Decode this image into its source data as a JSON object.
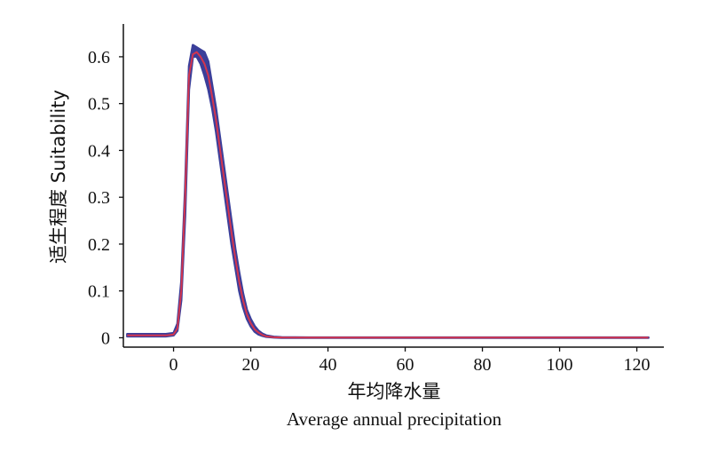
{
  "chart_data": {
    "type": "line",
    "title": "",
    "xlabel_cn": "年均降水量",
    "xlabel_en": "Average annual precipitation",
    "ylabel": "适生程度 Suitability",
    "xlim": [
      -13,
      127
    ],
    "ylim": [
      -0.02,
      0.67
    ],
    "xticks": [
      0,
      20,
      40,
      60,
      80,
      100,
      120
    ],
    "xtick_labels": [
      "0",
      "20",
      "40",
      "60",
      "80",
      "100",
      "120"
    ],
    "yticks": [
      0,
      0.1,
      0.2,
      0.3,
      0.4,
      0.5,
      0.6
    ],
    "ytick_labels": [
      "0",
      "0.1",
      "0.2",
      "0.3",
      "0.4",
      "0.5",
      "0.6"
    ],
    "grid": false,
    "series": [
      {
        "color": "#3b3f9a",
        "x": [
          -12,
          -2,
          0,
          1,
          2,
          3,
          4,
          5,
          6,
          7,
          8,
          9,
          10,
          11,
          12,
          13,
          14,
          15,
          16,
          17,
          18,
          19,
          20,
          21,
          22,
          23,
          24,
          26,
          28,
          35,
          60,
          90,
          123
        ],
        "upper": [
          0.008,
          0.008,
          0.01,
          0.03,
          0.12,
          0.32,
          0.58,
          0.625,
          0.62,
          0.615,
          0.61,
          0.59,
          0.54,
          0.49,
          0.43,
          0.37,
          0.31,
          0.25,
          0.19,
          0.14,
          0.095,
          0.06,
          0.04,
          0.025,
          0.015,
          0.009,
          0.005,
          0.002,
          0.001,
          0.0005,
          0.0005,
          0.0005,
          0.0005
        ],
        "lower": [
          0.003,
          0.003,
          0.005,
          0.015,
          0.08,
          0.26,
          0.53,
          0.6,
          0.6,
          0.585,
          0.56,
          0.53,
          0.49,
          0.44,
          0.38,
          0.32,
          0.26,
          0.2,
          0.15,
          0.1,
          0.065,
          0.04,
          0.024,
          0.013,
          0.007,
          0.004,
          0.002,
          0.0005,
          0,
          0,
          0,
          0,
          0
        ]
      },
      {
        "color": "#d3354f",
        "x": [
          -12,
          -2,
          0,
          1,
          2,
          3,
          4,
          5,
          6,
          7,
          8,
          9,
          10,
          11,
          12,
          13,
          14,
          15,
          16,
          17,
          18,
          19,
          20,
          21,
          22,
          23,
          24,
          26,
          28,
          35,
          60,
          90,
          123
        ],
        "y": [
          0.005,
          0.005,
          0.007,
          0.02,
          0.1,
          0.3,
          0.56,
          0.605,
          0.61,
          0.6,
          0.585,
          0.56,
          0.515,
          0.465,
          0.405,
          0.345,
          0.285,
          0.225,
          0.17,
          0.12,
          0.08,
          0.05,
          0.031,
          0.018,
          0.011,
          0.006,
          0.003,
          0.001,
          0.0005,
          0.0003,
          0.0003,
          0.0003,
          0.0003
        ]
      }
    ]
  }
}
